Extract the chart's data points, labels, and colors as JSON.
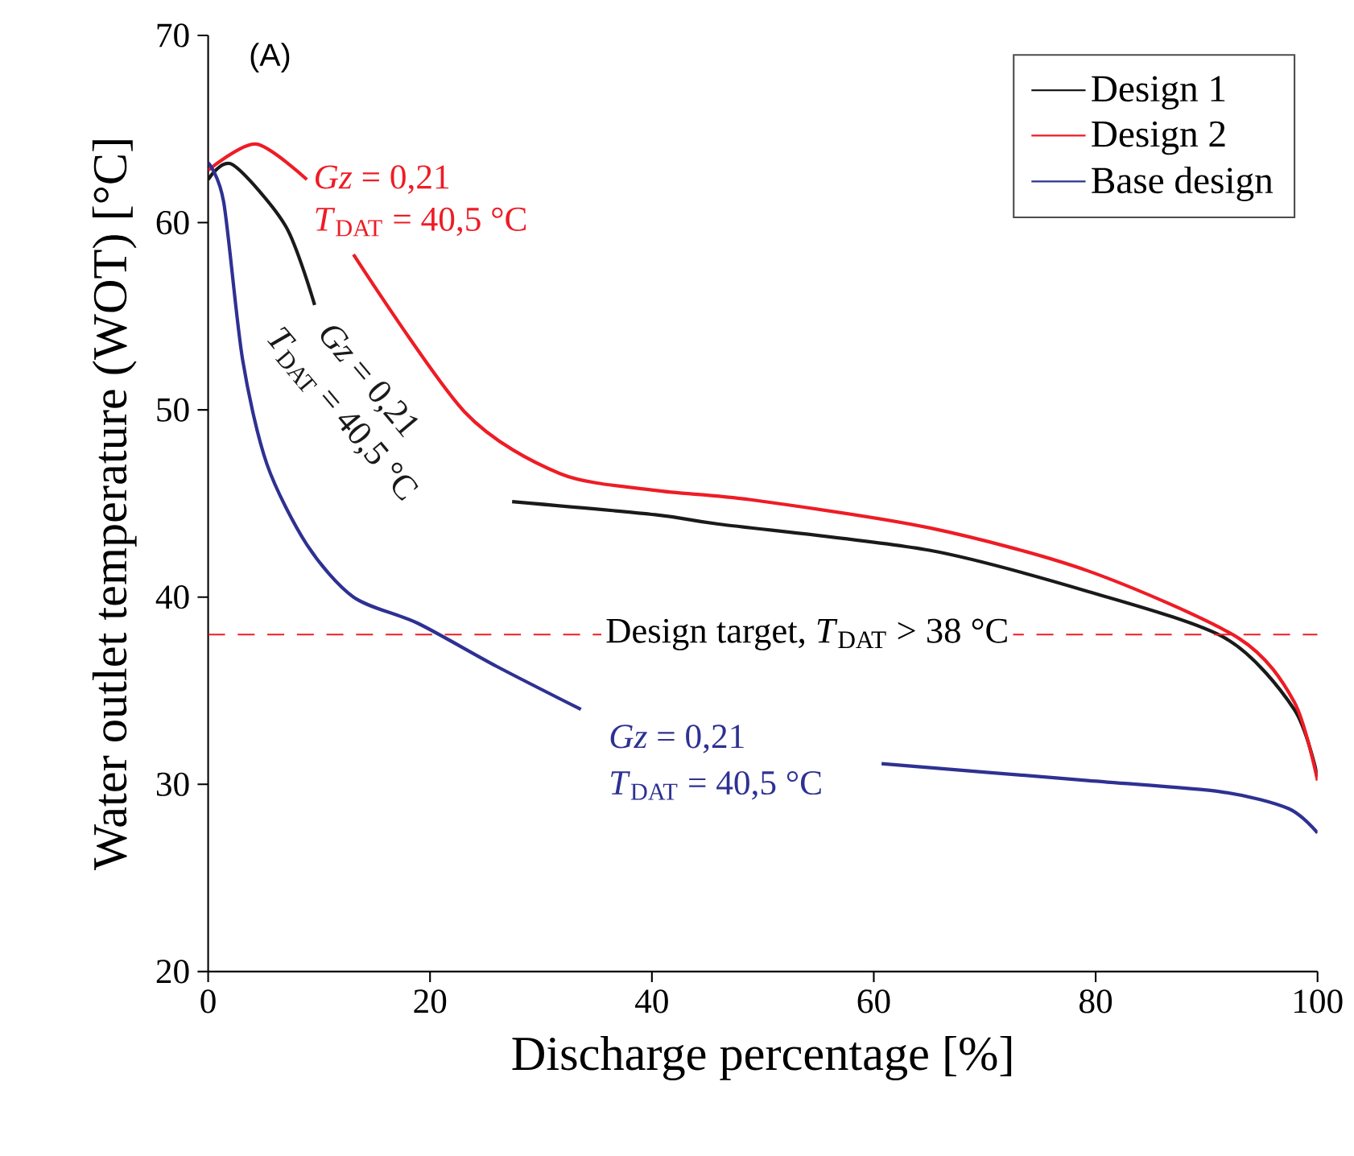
{
  "chart_data": {
    "type": "line",
    "title": "(A)",
    "xlabel": "Discharge percentage [%]",
    "ylabel": "Water outlet temperature (WOT) [°C]",
    "xlim": [
      0,
      100
    ],
    "ylim": [
      20,
      70
    ],
    "xticks": [
      0,
      20,
      40,
      60,
      80,
      100
    ],
    "yticks": [
      20,
      30,
      40,
      50,
      60,
      70
    ],
    "grid": false,
    "legend": "top right",
    "marker": "none",
    "line_style": "solid",
    "series": [
      {
        "name": "Design 1",
        "color": "#1a1a1a",
        "x": [
          0,
          2.2,
          7,
          9.6,
          18,
          27.4,
          40.3,
          46,
          65,
          79.3,
          91.7,
          97.9,
          100
        ],
        "values": [
          62.3,
          63.1,
          59.8,
          55.6,
          null,
          45.1,
          44.4,
          43.9,
          42.5,
          40.3,
          37.8,
          34.0,
          30.4
        ]
      },
      {
        "name": "Design 2",
        "color": "#ee1c25",
        "x": [
          0,
          4.3,
          8.9,
          11,
          13.1,
          23.1,
          31.7,
          40.3,
          48.9,
          65,
          79.3,
          92.9,
          97.9,
          100
        ],
        "values": [
          62.8,
          64.2,
          62.3,
          null,
          58.3,
          49.9,
          46.6,
          45.7,
          45.2,
          43.7,
          41.4,
          37.8,
          34.4,
          30.2
        ]
      },
      {
        "name": "Base design",
        "color": "#2e3192",
        "x": [
          0,
          1.4,
          3.1,
          5.3,
          8.9,
          13.1,
          18.9,
          26,
          33.6,
          45,
          60.7,
          79.3,
          91.3,
          97.4,
          100
        ],
        "values": [
          63.2,
          61.1,
          52.7,
          47.1,
          42.8,
          40.0,
          38.6,
          36.3,
          34.0,
          null,
          31.1,
          30.2,
          29.6,
          28.7,
          27.4
        ]
      }
    ],
    "ref_lines": [
      {
        "axis": "y",
        "value": 38,
        "label": "Design target, *T*$_{DAT}$ > 38 °C",
        "color": "#ee1c25",
        "line_style": "dashed"
      }
    ],
    "annotations": [
      "*Gz* = 0,21",
      "*T*$_{DAT}$ = 40,5 °C",
      "*Gz* = 0,21",
      "*T*$_{DAT}$ = 40,5 °C",
      "*Gz* = 0,21",
      "*T*$_{DAT}$ = 40,5 °C"
    ]
  }
}
